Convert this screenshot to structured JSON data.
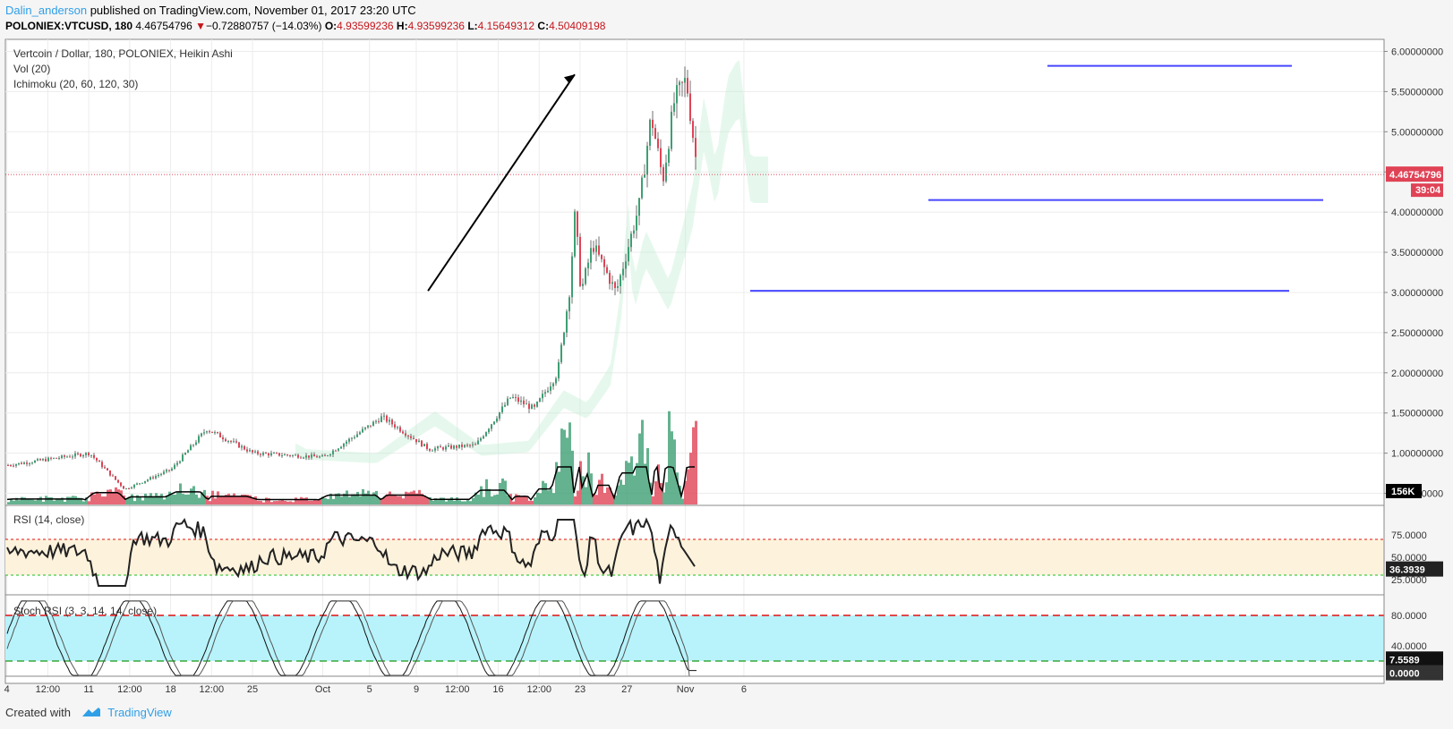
{
  "header": {
    "author": "Dalin_anderson",
    "published_text": "published on TradingView.com, November 01, 2017 23:20 UTC",
    "symbol": "POLONIEX:VTCUSD, 180",
    "last": "4.46754796",
    "change_arrow": "▼",
    "change": "−0.72880757 (−14.03%)",
    "o_label": "O:",
    "o": "4.93599236",
    "h_label": "H:",
    "h": "4.93599236",
    "l_label": "L:",
    "l": "4.15649312",
    "c_label": "C:",
    "c": "4.50409198"
  },
  "panes": {
    "main_title": "Vertcoin / Dollar, 180, POLONIEX, Heikin Ashi",
    "vol_title": "Vol (20)",
    "ichimoku_title": "Ichimoku (20, 60, 120, 30)",
    "rsi_title": "RSI (14, close)",
    "stoch_title": "Stoch RSI (3, 3, 14, 14, close)"
  },
  "price_axis": [
    "6.00000000",
    "5.50000000",
    "5.00000000",
    "4.50000000",
    "4.00000000",
    "3.50000000",
    "3.00000000",
    "2.50000000",
    "2.00000000",
    "1.50000000",
    "1.00000000",
    "0.50000000"
  ],
  "rsi_axis": [
    "75.0000",
    "50.0000",
    "25.0000"
  ],
  "stoch_axis": [
    "80.0000",
    "40.0000"
  ],
  "badges": {
    "price": "4.46754796",
    "countdown": "39:04",
    "volume": "156K",
    "rsi": "36.3939",
    "stoch_k": "7.5589",
    "stoch_d": "0.0000"
  },
  "time_axis": [
    "4",
    "12:00",
    "11",
    "12:00",
    "18",
    "12:00",
    "25",
    "Oct",
    "5",
    "9",
    "12:00",
    "16",
    "12:00",
    "23",
    "27",
    "Nov",
    "6"
  ],
  "footer": {
    "created_with": "Created with",
    "brand": "TradingView"
  },
  "colors": {
    "up": "#3d9f73",
    "down": "#e04356",
    "level_line": "#4747ff",
    "rsi_fill": "#fdf3dc",
    "stoch_fill": "#b8f3fb",
    "price_line": "#e04356"
  },
  "chart_data": {
    "type": "candlestick",
    "title": "Vertcoin / Dollar, 180, POLONIEX, Heikin Ashi",
    "price_range": [
      0.35,
      6.15
    ],
    "key_closes": [
      {
        "t": "Sep 4",
        "price": 0.85
      },
      {
        "t": "Sep 11",
        "price": 1.0
      },
      {
        "t": "Sep 14",
        "price": 0.55
      },
      {
        "t": "Sep 18",
        "price": 0.8
      },
      {
        "t": "Sep 21",
        "price": 1.3
      },
      {
        "t": "Sep 25",
        "price": 1.0
      },
      {
        "t": "Oct 1",
        "price": 0.95
      },
      {
        "t": "Oct 6",
        "price": 1.45
      },
      {
        "t": "Oct 10",
        "price": 1.05
      },
      {
        "t": "Oct 14",
        "price": 1.1
      },
      {
        "t": "Oct 17",
        "price": 1.7
      },
      {
        "t": "Oct 19",
        "price": 1.55
      },
      {
        "t": "Oct 21",
        "price": 2.0
      },
      {
        "t": "Oct 22",
        "price": 3.0
      },
      {
        "t": "Oct 22 12:00",
        "price": 4.0
      },
      {
        "t": "Oct 23",
        "price": 3.0
      },
      {
        "t": "Oct 24",
        "price": 3.6
      },
      {
        "t": "Oct 26",
        "price": 3.0
      },
      {
        "t": "Oct 28",
        "price": 4.1
      },
      {
        "t": "Oct 29",
        "price": 5.2
      },
      {
        "t": "Oct 30",
        "price": 4.4
      },
      {
        "t": "Oct 31",
        "price": 5.4
      },
      {
        "t": "Nov 1",
        "price": 5.65
      },
      {
        "t": "Nov 1 23:20",
        "price": 4.47
      }
    ],
    "levels": [
      5.82,
      4.15,
      3.02
    ],
    "arrow": {
      "from": {
        "t": "Oct 10",
        "price": 3.02
      },
      "to": {
        "t": "Oct 23",
        "price": 5.78
      }
    },
    "current_price": 4.46754796,
    "rsi": {
      "overbought": 70,
      "oversold": 30,
      "last": 36.3939
    },
    "stoch_rsi": {
      "upper": 80,
      "lower": 20,
      "k_last": 7.5589,
      "d_last": 0.0
    }
  }
}
